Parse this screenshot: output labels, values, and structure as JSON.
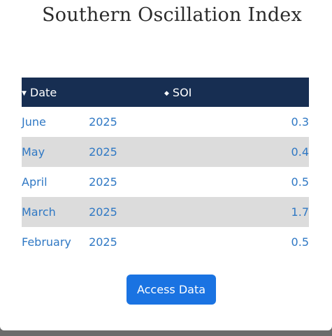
{
  "page": {
    "title": "Southern Oscillation Index"
  },
  "table": {
    "columns": [
      {
        "label": "Date",
        "sort_icon": "caret-down-icon"
      },
      {
        "label": "SOI",
        "sort_icon": "sort-updown-icon"
      }
    ],
    "rows": [
      {
        "month": "June",
        "year": "2025",
        "value": "0.3"
      },
      {
        "month": "May",
        "year": "2025",
        "value": "0.4"
      },
      {
        "month": "April",
        "year": "2025",
        "value": "0.5"
      },
      {
        "month": "March",
        "year": "2025",
        "value": "1.7"
      },
      {
        "month": "February",
        "year": "2025",
        "value": "0.5"
      }
    ]
  },
  "actions": {
    "access_label": "Access Data"
  },
  "colors": {
    "header_bg": "#172e52",
    "link_text": "#2f78c4",
    "stripe": "#dcdcdc",
    "button": "#1a73e2"
  }
}
